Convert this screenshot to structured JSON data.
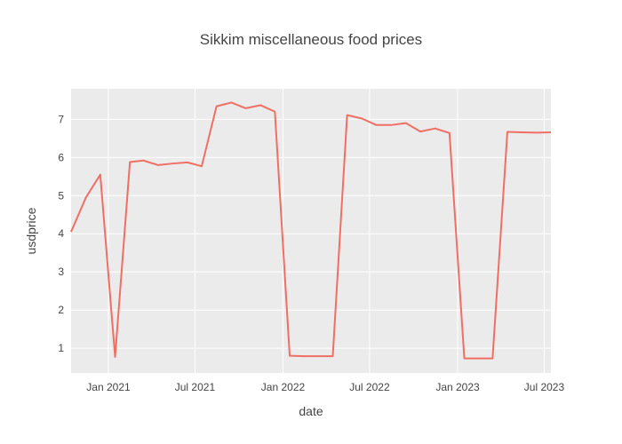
{
  "chart_data": {
    "type": "line",
    "title": "Sikkim miscellaneous food prices",
    "xlabel": "date",
    "ylabel": "usdprice",
    "x_ticks": [
      {
        "date": "2021-01-01",
        "label": "Jan 2021"
      },
      {
        "date": "2021-07-01",
        "label": "Jul 2021"
      },
      {
        "date": "2022-01-01",
        "label": "Jan 2022"
      },
      {
        "date": "2022-07-01",
        "label": "Jul 2022"
      },
      {
        "date": "2023-01-01",
        "label": "Jan 2023"
      },
      {
        "date": "2023-07-01",
        "label": "Jul 2023"
      }
    ],
    "y_ticks": [
      1,
      2,
      3,
      4,
      5,
      6,
      7
    ],
    "xlim": [
      "2020-10-15",
      "2023-07-15"
    ],
    "ylim": [
      0.35,
      7.8
    ],
    "grid": true,
    "series_color": "#EF6F65",
    "plot_bg": "#EBEBEB",
    "series": [
      {
        "x": [
          "2020-10-15",
          "2020-11-15",
          "2020-12-15",
          "2021-01-15",
          "2021-02-15",
          "2021-03-15",
          "2021-04-15",
          "2021-05-15",
          "2021-06-15",
          "2021-07-15",
          "2021-08-15",
          "2021-09-15",
          "2021-10-15",
          "2021-11-15",
          "2021-12-15",
          "2022-01-15",
          "2022-02-15",
          "2022-03-15",
          "2022-04-15",
          "2022-05-15",
          "2022-06-15",
          "2022-07-15",
          "2022-08-15",
          "2022-09-15",
          "2022-10-15",
          "2022-11-15",
          "2022-12-15",
          "2023-01-15",
          "2023-02-15",
          "2023-03-15",
          "2023-04-15",
          "2023-05-15",
          "2023-06-15",
          "2023-07-15"
        ],
        "y": [
          4.05,
          4.95,
          5.55,
          0.77,
          5.88,
          5.92,
          5.8,
          5.84,
          5.87,
          5.77,
          7.34,
          7.44,
          7.29,
          7.37,
          7.2,
          0.8,
          0.79,
          0.79,
          0.79,
          7.11,
          7.02,
          6.85,
          6.85,
          6.9,
          6.68,
          6.76,
          6.64,
          0.73,
          0.73,
          0.73,
          6.67,
          6.66,
          6.65,
          6.66
        ]
      }
    ]
  }
}
